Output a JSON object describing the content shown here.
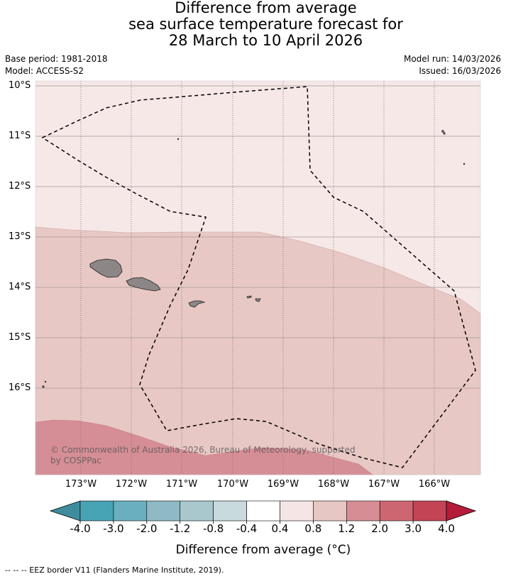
{
  "title": {
    "line1": "Difference from average",
    "line2": "sea surface temperature forecast for",
    "line3": "28 March to 10 April 2026"
  },
  "meta": {
    "base_period": "Base period: 1981-2018",
    "model": "Model: ACCESS-S2",
    "model_run": "Model run: 14/03/2026",
    "issued": "Issued: 16/03/2026"
  },
  "axes": {
    "lat_labels": [
      "10°S",
      "11°S",
      "12°S",
      "13°S",
      "14°S",
      "15°S",
      "16°S"
    ],
    "lon_labels": [
      "173°W",
      "172°W",
      "171°W",
      "170°W",
      "169°W",
      "168°W",
      "167°W",
      "166°W"
    ]
  },
  "copyright": "© Commonwealth of Australia 2026, Bureau of Meteorology, supported by COSPPac",
  "colorbar": {
    "title": "Difference from average (°C)",
    "ticks": [
      "-4.0",
      "-3.0",
      "-2.0",
      "-1.2",
      "-0.8",
      "-0.4",
      "0.4",
      "0.8",
      "1.2",
      "2.0",
      "3.0",
      "4.0"
    ],
    "colors": [
      "#3f8c9c",
      "#47a4b5",
      "#6aafbf",
      "#8fbac5",
      "#a9c8cd",
      "#c8dadd",
      "#ffffff",
      "#f5e6e5",
      "#e7c7c3",
      "#d68e94",
      "#cc6670",
      "#c24455",
      "#b51c3a"
    ]
  },
  "zones": {
    "band_0_4_to_0_8": "#f5e8e7",
    "band_0_8_to_1_2": "#e8c8c4",
    "band_1_2_to_2_0": "#d68e96",
    "land": "#8c8686"
  },
  "legend_note": "--  --  -- EEZ border V11 (Flanders Marine Institute, 2019)."
}
